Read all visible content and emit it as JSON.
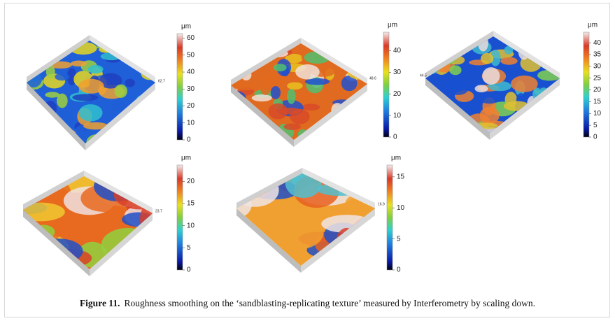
{
  "figure": {
    "panels": [
      {
        "unit": "μm",
        "max_label": "62.7",
        "colorbar_max": 62.7,
        "colorbar_ticks": [
          0,
          10,
          20,
          30,
          40,
          50,
          60
        ]
      },
      {
        "unit": "μm",
        "max_label": "48.6",
        "colorbar_max": 48.6,
        "colorbar_ticks": [
          0,
          10,
          20,
          30,
          40
        ]
      },
      {
        "unit": "μm",
        "max_label": "44.5",
        "colorbar_max": 44.5,
        "colorbar_ticks": [
          0,
          5,
          10,
          15,
          20,
          25,
          30,
          35,
          40
        ]
      },
      {
        "unit": "μm",
        "max_label": "23.7",
        "colorbar_max": 23.7,
        "colorbar_ticks": [
          0,
          5,
          10,
          15,
          20
        ]
      },
      {
        "unit": "μm",
        "max_label": "16.9",
        "colorbar_max": 16.9,
        "colorbar_ticks": [
          0,
          5,
          10,
          15
        ]
      }
    ],
    "caption": {
      "label": "Figure 11.",
      "text": "Roughness smoothing on the ‘sandblasting-replicating texture’ measured by Interferometry by scaling down."
    }
  }
}
